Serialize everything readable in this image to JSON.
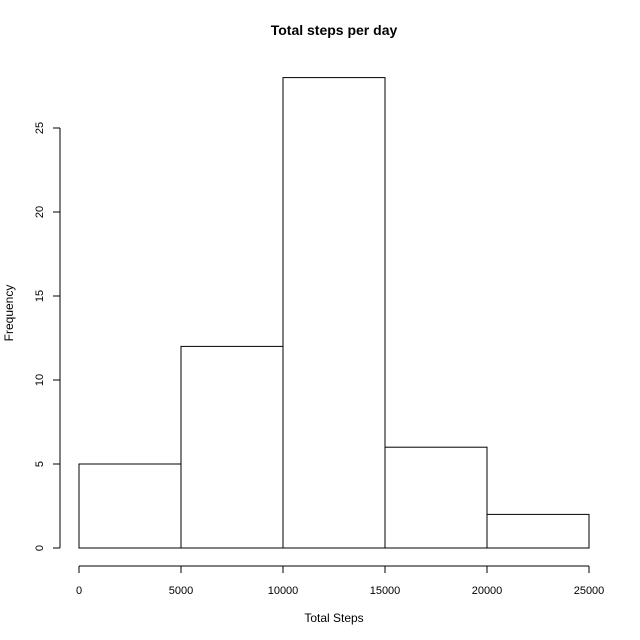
{
  "chart_data": {
    "type": "bar",
    "title": "Total steps per day",
    "xlabel": "Total Steps",
    "ylabel": "Frequency",
    "bins": [
      {
        "start": 0,
        "end": 5000,
        "count": 5
      },
      {
        "start": 5000,
        "end": 10000,
        "count": 12
      },
      {
        "start": 10000,
        "end": 15000,
        "count": 28
      },
      {
        "start": 15000,
        "end": 20000,
        "count": 6
      },
      {
        "start": 20000,
        "end": 25000,
        "count": 2
      }
    ],
    "xlim": [
      0,
      25000
    ],
    "ylim": [
      0,
      28
    ],
    "x_ticks": [
      0,
      5000,
      10000,
      15000,
      20000,
      25000
    ],
    "y_ticks": [
      0,
      5,
      10,
      15,
      20,
      25
    ],
    "x_tick_labels": [
      "0",
      "5000",
      "10000",
      "15000",
      "20000",
      "25000"
    ],
    "y_tick_labels": [
      "0",
      "5",
      "10",
      "15",
      "20",
      "25"
    ],
    "grid": false,
    "colors": {
      "bar_fill": "#ffffff",
      "bar_stroke": "#000000",
      "axis": "#000000",
      "background": "#ffffff"
    }
  }
}
